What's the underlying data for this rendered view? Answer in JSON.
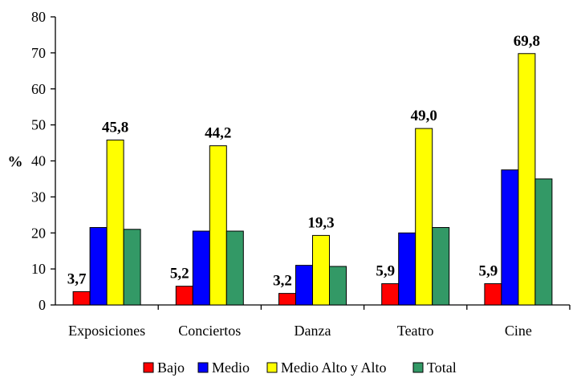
{
  "chart_data": {
    "type": "bar",
    "categories": [
      "Exposiciones",
      "Conciertos",
      "Danza",
      "Teatro",
      "Cine"
    ],
    "series": [
      {
        "name": "Bajo",
        "values": [
          3.7,
          5.2,
          3.2,
          5.9,
          5.9
        ],
        "color": "#ff0000"
      },
      {
        "name": "Medio",
        "values": [
          21.5,
          20.5,
          11.0,
          20.0,
          37.5
        ],
        "color": "#0000ff"
      },
      {
        "name": "Medio Alto y Alto",
        "values": [
          45.8,
          44.2,
          19.3,
          49.0,
          69.8
        ],
        "color": "#ffff00"
      },
      {
        "name": "Total",
        "values": [
          21.0,
          20.5,
          10.7,
          21.5,
          35.0
        ],
        "color": "#339966"
      }
    ],
    "data_labels": {
      "Bajo": [
        "3,7",
        "5,2",
        "3,2",
        "5,9",
        "5,9"
      ],
      "Medio Alto y Alto": [
        "45,8",
        "44,2",
        "19,3",
        "49,0",
        "69,8"
      ]
    },
    "ylabel": "%",
    "xlabel": "",
    "ylim": [
      0,
      80
    ],
    "yticks": [
      0,
      10,
      20,
      30,
      40,
      50,
      60,
      70,
      80
    ],
    "grid": false,
    "legend_position": "bottom"
  }
}
